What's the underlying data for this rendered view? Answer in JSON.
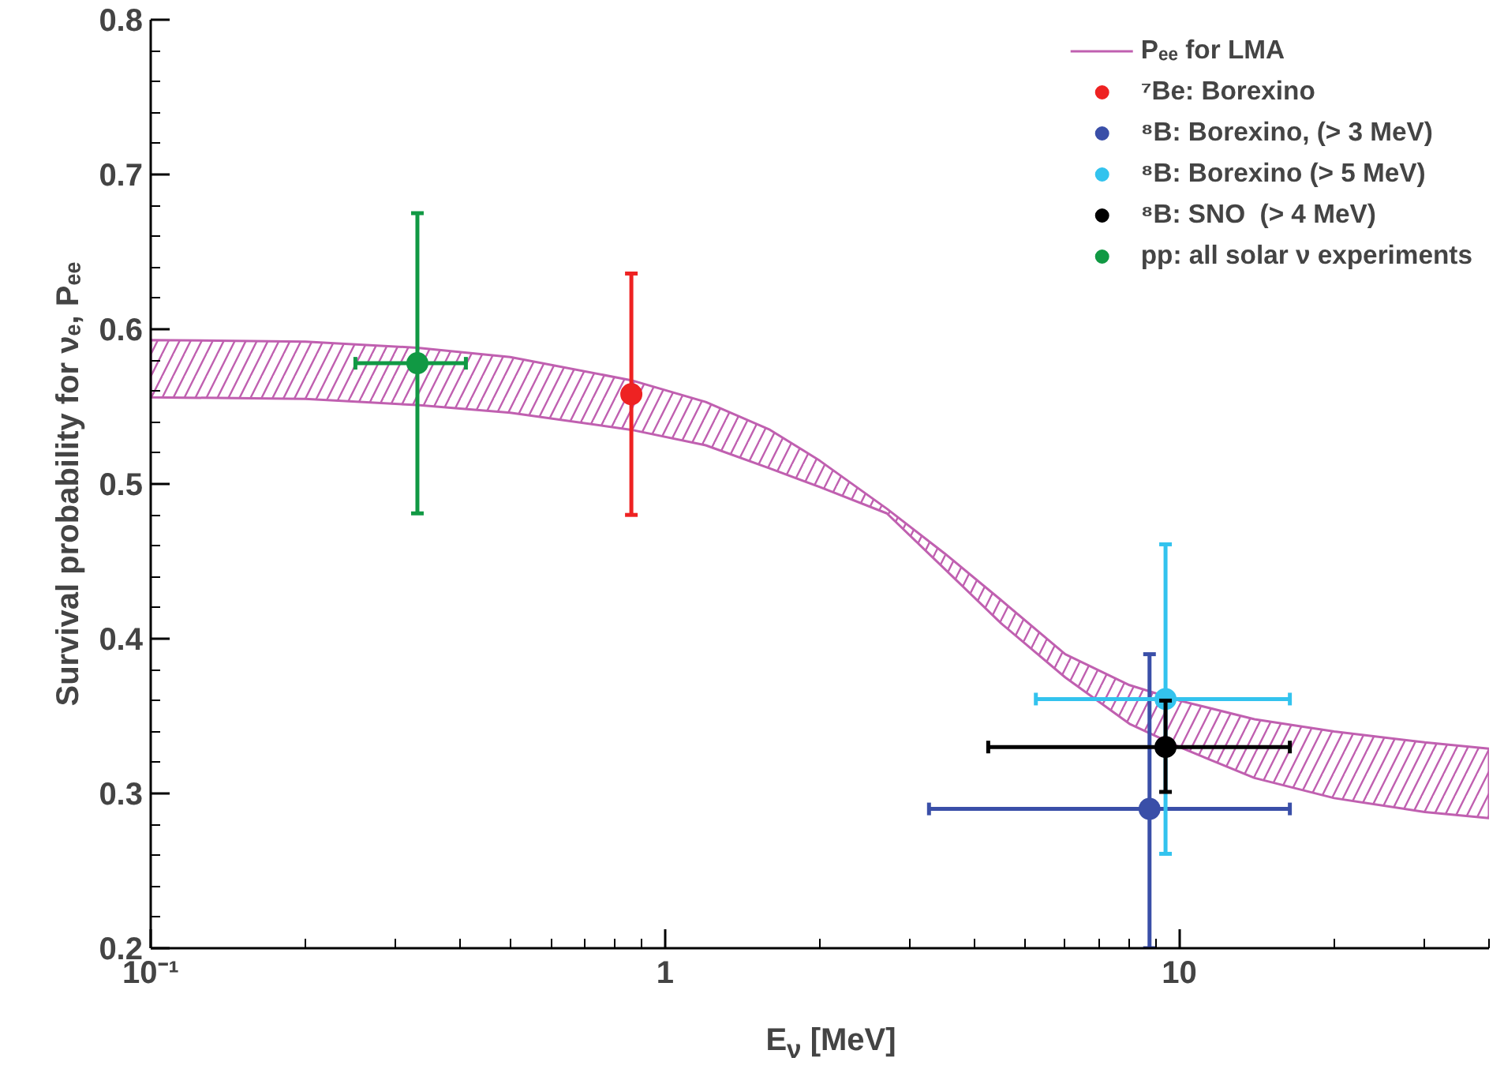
{
  "chart_data": {
    "type": "scatter",
    "xlabel": "E$_{ν}$ [MeV]",
    "ylabel": "Survival probability for νₑ, Pₑₑ",
    "log": "x",
    "xlim": [
      0.1,
      40
    ],
    "ylim": [
      0.2,
      0.8
    ],
    "xticks": [
      {
        "value": 0.1,
        "label": "10⁻¹"
      },
      1,
      10
    ],
    "yticks": [
      0.2,
      0.3,
      0.4,
      0.5,
      0.6,
      0.7,
      0.8
    ],
    "grid": false,
    "legend": "top right",
    "marker": "circle",
    "series": [
      {
        "name": "Pₑₑ for LMA",
        "type": "line",
        "color": "#c060b0",
        "x": [
          0.1,
          0.2,
          0.33,
          0.5,
          0.86,
          1.2,
          1.6,
          2,
          2.7,
          3.5,
          4.5,
          6,
          8,
          10,
          14,
          20,
          30,
          40
        ],
        "values": [
          null,
          null,
          null,
          null,
          null,
          null,
          null,
          null,
          null,
          null,
          null,
          null,
          null,
          null,
          null,
          null,
          null,
          null
        ],
        "lower": [
          0.556,
          0.555,
          0.551,
          0.546,
          0.535,
          0.525,
          0.51,
          0.498,
          0.481,
          0.445,
          0.41,
          0.375,
          0.345,
          0.33,
          0.31,
          0.297,
          0.288,
          0.284
        ],
        "upper": [
          0.593,
          0.592,
          0.588,
          0.582,
          0.567,
          0.553,
          0.535,
          0.515,
          0.484,
          0.455,
          0.425,
          0.39,
          0.37,
          0.36,
          0.348,
          0.34,
          0.333,
          0.329
        ]
      },
      {
        "name": "⁷Be: Borexino",
        "color": "#ee2222",
        "x": [
          0.86
        ],
        "values": [
          0.558
        ],
        "errors": [
          [
            0.48,
            0.636
          ]
        ]
      },
      {
        "name": "⁸B: Borexino, (> 3 MeV)",
        "color": "#3a4fa8",
        "x": [
          8.75
        ],
        "values": [
          0.29
        ],
        "errors": [
          [
            0.2,
            0.39
          ]
        ],
        "xerrors": [
          [
            3.26,
            16.4
          ]
        ]
      },
      {
        "name": "⁸B: Borexino (> 5 MeV)",
        "color": "#33c3ee",
        "x": [
          9.4
        ],
        "values": [
          0.361
        ],
        "errors": [
          [
            0.261,
            0.461
          ]
        ],
        "xerrors": [
          [
            5.26,
            16.4
          ]
        ]
      },
      {
        "name": "⁸B: SNO  (> 4 MeV)",
        "color": "#000000",
        "x": [
          9.4
        ],
        "values": [
          0.33
        ],
        "errors": [
          [
            0.301,
            0.36
          ]
        ],
        "xerrors": [
          [
            4.25,
            16.4
          ]
        ]
      },
      {
        "name": "pp: all solar ν experiments",
        "color": "#119944",
        "x": [
          0.33
        ],
        "values": [
          0.578
        ],
        "errors": [
          [
            0.481,
            0.675
          ]
        ],
        "xerrors": [
          [
            0.25,
            0.41
          ]
        ]
      }
    ]
  }
}
